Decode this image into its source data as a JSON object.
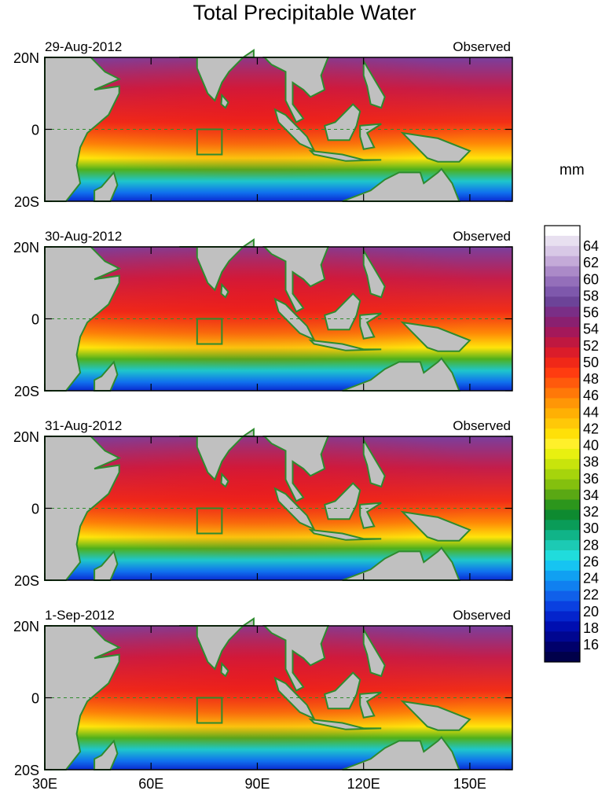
{
  "chart_data": {
    "type": "heatmap",
    "title": "Total Precipitable Water",
    "units": "mm",
    "x_axis": {
      "range_deg_east": [
        30,
        162
      ],
      "ticks": [
        "30E",
        "60E",
        "90E",
        "120E",
        "150E"
      ],
      "tick_values": [
        30,
        60,
        90,
        120,
        150
      ]
    },
    "y_axis": {
      "range_deg": [
        -20,
        20
      ],
      "ticks": [
        "20N",
        "0",
        "20S"
      ],
      "tick_values": [
        20,
        0,
        -20
      ]
    },
    "panels": [
      {
        "date": "29-Aug-2012",
        "label": "Observed",
        "box_lon": [
          73,
          80
        ],
        "box_lat": [
          -7,
          0
        ]
      },
      {
        "date": "30-Aug-2012",
        "label": "Observed",
        "box_lon": [
          73,
          80
        ],
        "box_lat": [
          -7,
          0
        ]
      },
      {
        "date": "31-Aug-2012",
        "label": "Observed",
        "box_lon": [
          73,
          80
        ],
        "box_lat": [
          -7,
          0
        ]
      },
      {
        "date": "1-Sep-2012",
        "label": "Observed",
        "box_lon": [
          73,
          80
        ],
        "box_lat": [
          -7,
          0
        ]
      }
    ],
    "colorbar": {
      "labels": [
        "64",
        "62",
        "60",
        "58",
        "56",
        "54",
        "52",
        "50",
        "48",
        "46",
        "44",
        "42",
        "40",
        "38",
        "36",
        "34",
        "32",
        "30",
        "28",
        "26",
        "24",
        "22",
        "20",
        "18",
        "16"
      ],
      "colors": [
        "#ffffff",
        "#e8e0f0",
        "#d8c8e6",
        "#c4aad8",
        "#ab8ac8",
        "#946fba",
        "#7e58ac",
        "#6c4398",
        "#7a2e86",
        "#8a2070",
        "#a4185a",
        "#bf1840",
        "#db1c2a",
        "#f02818",
        "#ff3c10",
        "#ff5a0c",
        "#ff7808",
        "#ff9606",
        "#ffb004",
        "#ffc808",
        "#ffe008",
        "#fff02a",
        "#e8f010",
        "#c8e40c",
        "#a6d40c",
        "#84c00e",
        "#5aa814",
        "#2c961c",
        "#0e8a30",
        "#0a9c58",
        "#10b488",
        "#1ccab4",
        "#20dcdc",
        "#16c4f2",
        "#10a0f2",
        "#1080f0",
        "#1060ea",
        "#0a40e0",
        "#0424cc",
        "#000eb0",
        "#000690",
        "#00006a",
        "#00004a"
      ]
    }
  }
}
